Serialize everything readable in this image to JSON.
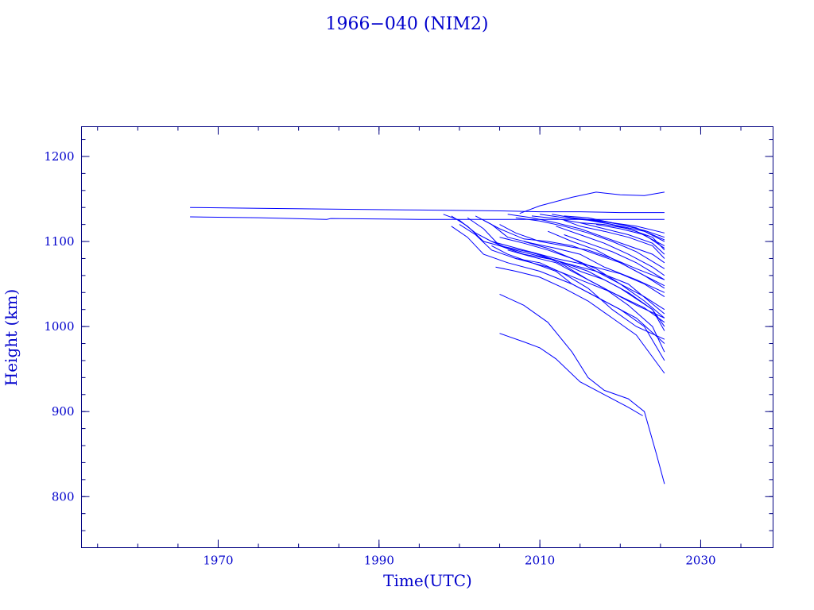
{
  "chart_data": {
    "type": "line",
    "title": "1966−040 (NIM2)",
    "xlabel": "Time(UTC)",
    "ylabel": "Height (km)",
    "xlim": [
      1953,
      2039
    ],
    "ylim": [
      740,
      1235
    ],
    "x_ticks": [
      1970,
      1990,
      2010,
      2030
    ],
    "y_ticks": [
      800,
      900,
      1000,
      1100,
      1200
    ],
    "x_minor_step": 5,
    "y_minor_step": 20,
    "grid": false,
    "color": "#0000ff",
    "series": [
      {
        "x": [
          1966.5,
          1975,
          1985,
          1995,
          2005,
          2010,
          2015,
          2020,
          2025.5
        ],
        "y": [
          1140,
          1139,
          1138,
          1137,
          1136,
          1135,
          1135,
          1134,
          1134
        ]
      },
      {
        "x": [
          1966.5,
          1975,
          1983.5,
          1984,
          1995,
          2005,
          2015,
          2025.5
        ],
        "y": [
          1129,
          1128,
          1126,
          1127,
          1126,
          1126,
          1126,
          1126
        ]
      },
      {
        "x": [
          2007.5,
          2010,
          2014,
          2017,
          2020,
          2023,
          2025.5
        ],
        "y": [
          1133,
          1142,
          1152,
          1158,
          1155,
          1154,
          1158
        ]
      },
      {
        "x": [
          1998.0,
          2000,
          2002,
          2004,
          2008,
          2012,
          2016,
          2020,
          2023,
          2025.5
        ],
        "y": [
          1132,
          1125,
          1110,
          1100,
          1090,
          1080,
          1072,
          1062,
          1050,
          1035
        ]
      },
      {
        "x": [
          1999.0,
          2001,
          2003,
          2005,
          2009,
          2013,
          2017,
          2021,
          2025.5
        ],
        "y": [
          1130,
          1118,
          1100,
          1095,
          1087,
          1075,
          1065,
          1050,
          1015
        ]
      },
      {
        "x": [
          1999.0,
          2001,
          2003,
          2006,
          2010,
          2014,
          2018,
          2022,
          2025.5
        ],
        "y": [
          1118,
          1105,
          1085,
          1075,
          1065,
          1050,
          1030,
          1010,
          980
        ]
      },
      {
        "x": [
          2000.0,
          2002,
          2004,
          2007,
          2011,
          2015,
          2019,
          2023,
          2025.5
        ],
        "y": [
          1120,
          1108,
          1090,
          1080,
          1070,
          1055,
          1040,
          1022,
          1005
        ]
      },
      {
        "x": [
          2001.0,
          2003,
          2005,
          2008,
          2012,
          2016,
          2020,
          2024,
          2025.5
        ],
        "y": [
          1128,
          1115,
          1095,
          1085,
          1078,
          1065,
          1045,
          1020,
          995
        ]
      },
      {
        "x": [
          2002.0,
          2004,
          2006,
          2009,
          2012,
          2015,
          2018,
          2022,
          2025.5
        ],
        "y": [
          1130,
          1120,
          1105,
          1098,
          1092,
          1085,
          1070,
          1055,
          1040
        ]
      },
      {
        "x": [
          2003.0,
          2005,
          2008,
          2011,
          2014,
          2017,
          2020,
          2023,
          2025.5
        ],
        "y": [
          1125,
          1115,
          1103,
          1100,
          1095,
          1085,
          1075,
          1060,
          1048
        ]
      },
      {
        "x": [
          2004.0,
          2006,
          2009,
          2012,
          2015,
          2018,
          2021,
          2024,
          2025.5
        ],
        "y": [
          1100,
          1092,
          1085,
          1078,
          1065,
          1055,
          1040,
          1020,
          1000
        ]
      },
      {
        "x": [
          2004.0,
          2006,
          2009,
          2012,
          2014,
          2017,
          2020,
          2023,
          2025.5
        ],
        "y": [
          1095,
          1085,
          1075,
          1065,
          1050,
          1035,
          1020,
          1000,
          960
        ]
      },
      {
        "x": [
          2004.5,
          2007,
          2010,
          2013,
          2016,
          2019,
          2022,
          2025.5
        ],
        "y": [
          1070,
          1065,
          1058,
          1045,
          1030,
          1010,
          990,
          945
        ]
      },
      {
        "x": [
          2005.0,
          2008,
          2011,
          2014,
          2017,
          2020,
          2023,
          2025.5
        ],
        "y": [
          1105,
          1098,
          1090,
          1080,
          1065,
          1050,
          1030,
          1010
        ]
      },
      {
        "x": [
          2005.0,
          2007,
          2010,
          2013,
          2016,
          2019,
          2022,
          2025.5
        ],
        "y": [
          1120,
          1110,
          1100,
          1095,
          1090,
          1080,
          1068,
          1055
        ]
      },
      {
        "x": [
          2006.0,
          2009,
          2012,
          2015,
          2018,
          2021,
          2024,
          2025.5
        ],
        "y": [
          1132,
          1128,
          1122,
          1115,
          1105,
          1095,
          1085,
          1075
        ]
      },
      {
        "x": [
          2007.0,
          2010,
          2013,
          2016,
          2019,
          2022,
          2025.5
        ],
        "y": [
          1128,
          1124,
          1118,
          1110,
          1100,
          1088,
          1068
        ]
      },
      {
        "x": [
          2009.0,
          2012,
          2015,
          2018,
          2021,
          2024,
          2025.5
        ],
        "y": [
          1130,
          1127,
          1122,
          1115,
          1108,
          1098,
          1085
        ]
      },
      {
        "x": [
          2010.0,
          2013,
          2016,
          2019,
          2022,
          2025.5
        ],
        "y": [
          1132,
          1128,
          1125,
          1120,
          1112,
          1095
        ]
      },
      {
        "x": [
          2011.5,
          2014,
          2017,
          2020,
          2023,
          2025.5
        ],
        "y": [
          1132,
          1128,
          1125,
          1120,
          1113,
          1105
        ]
      },
      {
        "x": [
          2013.0,
          2016,
          2019,
          2022,
          2025.5
        ],
        "y": [
          1130,
          1128,
          1122,
          1118,
          1110
        ]
      },
      {
        "x": [
          2013.0,
          2015,
          2018,
          2021,
          2024,
          2025.5
        ],
        "y": [
          1125,
          1118,
          1112,
          1105,
          1095,
          1080
        ]
      },
      {
        "x": [
          2014.0,
          2017,
          2020,
          2023,
          2025.5
        ],
        "y": [
          1128,
          1124,
          1118,
          1112,
          1100
        ]
      },
      {
        "x": [
          2015.0,
          2018,
          2021,
          2024,
          2025.5
        ],
        "y": [
          1122,
          1120,
          1115,
          1105,
          1090
        ]
      },
      {
        "x": [
          2016.0,
          2019,
          2022,
          2025.5
        ],
        "y": [
          1126,
          1122,
          1116,
          1102
        ]
      },
      {
        "x": [
          2017.0,
          2020,
          2023,
          2025.5
        ],
        "y": [
          1120,
          1115,
          1108,
          1092
        ]
      },
      {
        "x": [
          2006.0,
          2009,
          2012,
          2015,
          2018,
          2021,
          2024,
          2025.5
        ],
        "y": [
          1090,
          1082,
          1075,
          1060,
          1045,
          1025,
          1000,
          970
        ]
      },
      {
        "x": [
          2007.0,
          2010,
          2013,
          2016,
          2019,
          2022,
          2025.5
        ],
        "y": [
          1080,
          1075,
          1062,
          1045,
          1020,
          1000,
          985
        ]
      },
      {
        "x": [
          2008.0,
          2011,
          2014,
          2017,
          2020,
          2023,
          2025.5
        ],
        "y": [
          1100,
          1092,
          1080,
          1068,
          1050,
          1035,
          1020
        ]
      },
      {
        "x": [
          2010.0,
          2013,
          2016,
          2019,
          2022,
          2025.5
        ],
        "y": [
          1085,
          1072,
          1055,
          1040,
          1025,
          1010
        ]
      },
      {
        "x": [
          2011.0,
          2014,
          2017,
          2020,
          2023,
          2025.5
        ],
        "y": [
          1112,
          1100,
          1090,
          1075,
          1060,
          1045
        ]
      },
      {
        "x": [
          2012.0,
          2015,
          2018,
          2021,
          2024,
          2025.5
        ],
        "y": [
          1118,
          1108,
          1098,
          1085,
          1070,
          1060
        ]
      },
      {
        "x": [
          2013.0,
          2016,
          2019,
          2022,
          2025.5
        ],
        "y": [
          1108,
          1098,
          1088,
          1075,
          1055
        ]
      },
      {
        "x": [
          2005.0,
          2008,
          2011,
          2014,
          2016,
          2018,
          2021,
          2023,
          2024.5,
          2025.5
        ],
        "y": [
          1038,
          1025,
          1005,
          970,
          940,
          925,
          915,
          900,
          850,
          815
        ]
      },
      {
        "x": [
          2005.0,
          2008,
          2010,
          2012,
          2015,
          2018,
          2021,
          2022.8
        ],
        "y": [
          992,
          982,
          975,
          962,
          935,
          920,
          905,
          895
        ]
      }
    ]
  }
}
